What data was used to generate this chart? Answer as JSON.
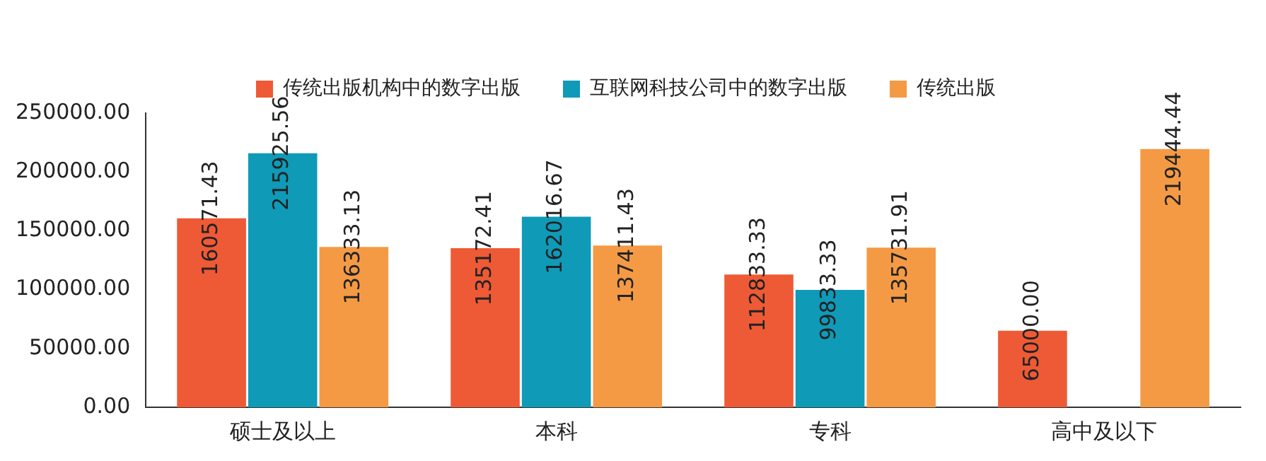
{
  "chart_data": {
    "type": "bar",
    "categories": [
      "硕士及以上",
      "本科",
      "专科",
      "高中及以下"
    ],
    "series": [
      {
        "name": "传统出版机构中的数字出版",
        "color": "#ee5a35",
        "values": [
          160571.43,
          135172.41,
          112833.33,
          65000.0
        ],
        "value_labels": [
          "160571.43",
          "135172.41",
          "112833.33",
          "65000.00"
        ]
      },
      {
        "name": "互联网科技公司中的数字出版",
        "color": "#0f9ab8",
        "values": [
          215925.56,
          162016.67,
          99833.33,
          null
        ],
        "value_labels": [
          "215925.56",
          "162016.67",
          "99833.33",
          null
        ]
      },
      {
        "name": "传统出版",
        "color": "#f49a45",
        "values": [
          136333.13,
          137411.43,
          135731.91,
          219444.44
        ],
        "value_labels": [
          "136333.13",
          "137411.43",
          "135731.91",
          "219444.44"
        ]
      }
    ],
    "ylim": [
      0,
      250000
    ],
    "yticks": [
      {
        "value": 0,
        "label": "0.00"
      },
      {
        "value": 50000,
        "label": "50000.00"
      },
      {
        "value": 100000,
        "label": "100000.00"
      },
      {
        "value": 150000,
        "label": "150000.00"
      },
      {
        "value": 200000,
        "label": "200000.00"
      },
      {
        "value": 250000,
        "label": "250000.00"
      }
    ],
    "grid": false,
    "legend": "top"
  }
}
